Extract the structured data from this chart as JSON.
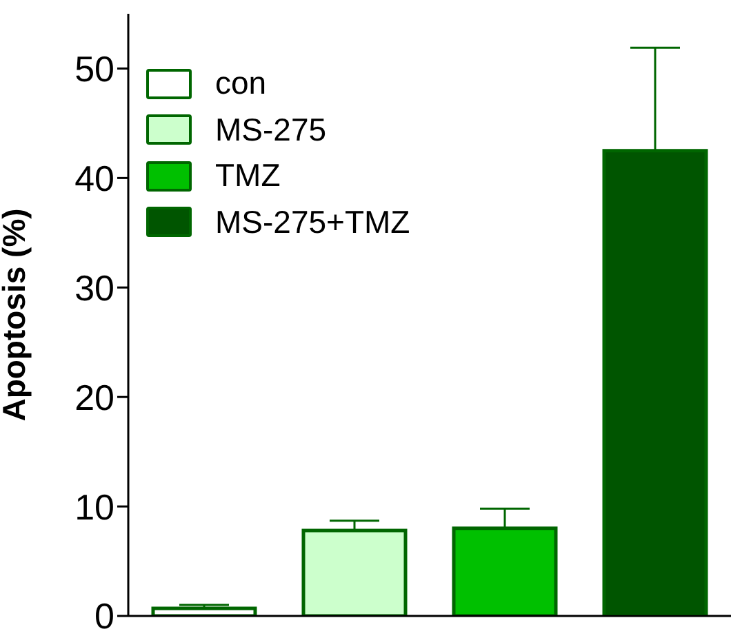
{
  "chart_data": {
    "type": "bar",
    "ylabel": "Apoptosis (%)",
    "categories": [
      null
    ],
    "series": [
      {
        "name": "con",
        "color": "#ffffff",
        "values": [
          0.7
        ],
        "errors": [
          [
            0.7,
            1.0
          ]
        ]
      },
      {
        "name": "MS-275",
        "color": "#ccffcc",
        "values": [
          7.8
        ],
        "errors": [
          [
            7.8,
            8.7
          ]
        ]
      },
      {
        "name": "TMZ",
        "color": "#00c000",
        "values": [
          8.0
        ],
        "errors": [
          [
            8.0,
            9.8
          ]
        ]
      },
      {
        "name": "MS-275+TMZ",
        "color": "#005500",
        "values": [
          42.5
        ],
        "errors": [
          [
            42.5,
            51.9
          ]
        ]
      }
    ],
    "ylim": [
      0,
      55
    ],
    "yticks": [
      0,
      10,
      20,
      30,
      40,
      50
    ],
    "grid": false,
    "legend": "top left"
  }
}
